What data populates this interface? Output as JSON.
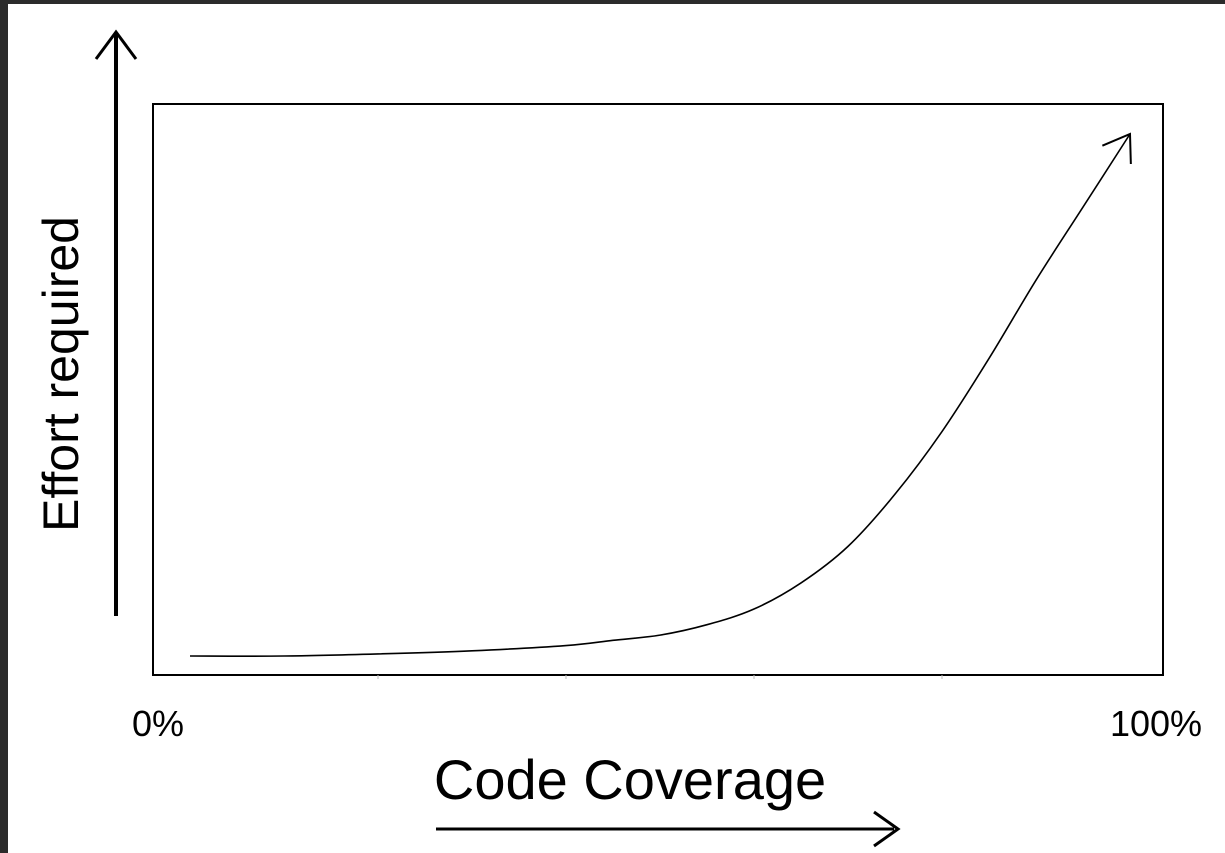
{
  "colors": {
    "background": "#ffffff",
    "frame": "#2b2b2b",
    "line": "#000000"
  },
  "chart_data": {
    "type": "line",
    "xlabel": "Code Coverage",
    "ylabel": "Effort required",
    "x_tick_labels": [
      "0%",
      "100%"
    ],
    "xlim": [
      0,
      100
    ],
    "ylim": [
      0,
      100
    ],
    "grid": false,
    "legend": "none",
    "series": [
      {
        "x": [
          0,
          10,
          20,
          30,
          40,
          45,
          50,
          55,
          60,
          65,
          70,
          75,
          80,
          85,
          90,
          95,
          100
        ],
        "y": [
          0,
          0,
          0.4,
          1,
          2,
          3,
          4,
          6,
          9,
          14,
          21,
          31,
          43,
          57,
          72,
          86,
          100
        ]
      }
    ]
  }
}
